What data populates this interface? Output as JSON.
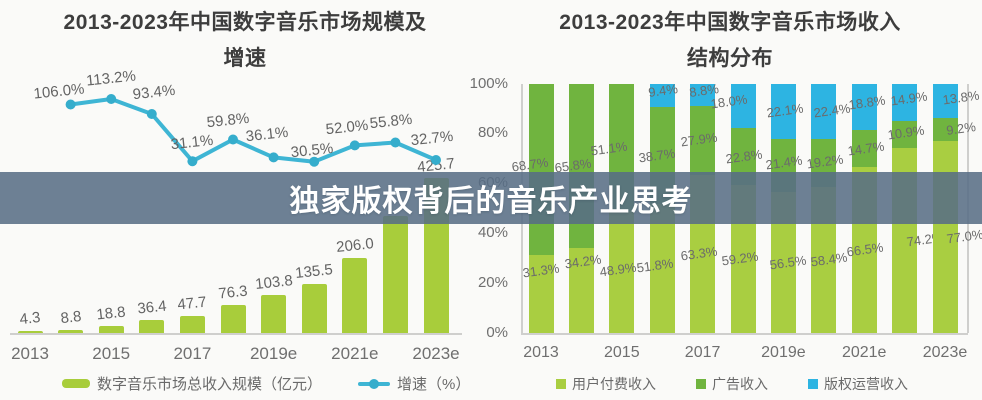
{
  "banner": {
    "text": "独家版权背后的音乐产业思考"
  },
  "chart_data": [
    {
      "id": "market-scale-and-growth",
      "type": "bar+line",
      "title_line1": "2013-2023年中国数字音乐市场规模及",
      "title_line2": "增速",
      "categories": [
        "2013",
        "2014",
        "2015",
        "2016",
        "2017",
        "2018",
        "2019e",
        "2020e",
        "2021e",
        "2022e",
        "2023e"
      ],
      "x_tick_labels": [
        "2013",
        "2015",
        "2017",
        "2019e",
        "2021e",
        "2023e"
      ],
      "bars": {
        "name": "数字音乐市场总收入规模（亿元）",
        "color": "#a8cd3b",
        "values": [
          4.3,
          8.8,
          18.8,
          36.4,
          47.7,
          76.3,
          103.8,
          135.5,
          206.0,
          320.9,
          425.7
        ],
        "labels": [
          "4.3",
          "8.8",
          "18.8",
          "36.4",
          "47.7",
          "76.3",
          "103.8",
          "135.5",
          "206.0",
          "",
          "425.7"
        ],
        "note": "2022e bar label is hidden behind the headline banner; value estimated from bar height"
      },
      "line": {
        "name": "增速（%）",
        "color": "#3eb5d4",
        "start_category": "2014",
        "values": [
          106.0,
          113.2,
          93.4,
          31.1,
          59.8,
          36.1,
          30.5,
          52.0,
          55.8,
          32.7
        ],
        "labels": [
          "106.0%",
          "113.2%",
          "93.4%",
          "31.1%",
          "59.8%",
          "36.1%",
          "30.5%",
          "52.0%",
          "55.8%",
          "32.7%"
        ]
      }
    },
    {
      "id": "revenue-structure",
      "type": "stacked-bar-100",
      "title_line1": "2013-2023年中国数字音乐市场收入",
      "title_line2": "结构分布",
      "categories": [
        "2013",
        "2014",
        "2015",
        "2016",
        "2017",
        "2018",
        "2019e",
        "2020e",
        "2021e",
        "2022e",
        "2023e"
      ],
      "x_tick_labels": [
        "2013",
        "2015",
        "2017",
        "2019e",
        "2021e",
        "2023e"
      ],
      "y_tick_labels": [
        "100%",
        "80%",
        "60%",
        "40%",
        "20%",
        "0%"
      ],
      "ylim": [
        0,
        100
      ],
      "series": [
        {
          "name": "用户付费收入",
          "color": "#a9ce41",
          "values": [
            31.3,
            34.2,
            48.9,
            51.8,
            63.3,
            59.2,
            56.5,
            58.4,
            66.5,
            74.2,
            77.0
          ]
        },
        {
          "name": "广告收入",
          "color": "#70b43f",
          "values": [
            68.7,
            65.8,
            51.1,
            38.7,
            27.9,
            22.8,
            21.4,
            19.2,
            14.7,
            10.9,
            9.2
          ]
        },
        {
          "name": "版权运营收入",
          "color": "#2db4e2",
          "values": [
            0,
            0,
            0,
            9.4,
            8.8,
            18.0,
            22.1,
            22.4,
            18.8,
            14.9,
            13.8
          ]
        }
      ]
    }
  ]
}
